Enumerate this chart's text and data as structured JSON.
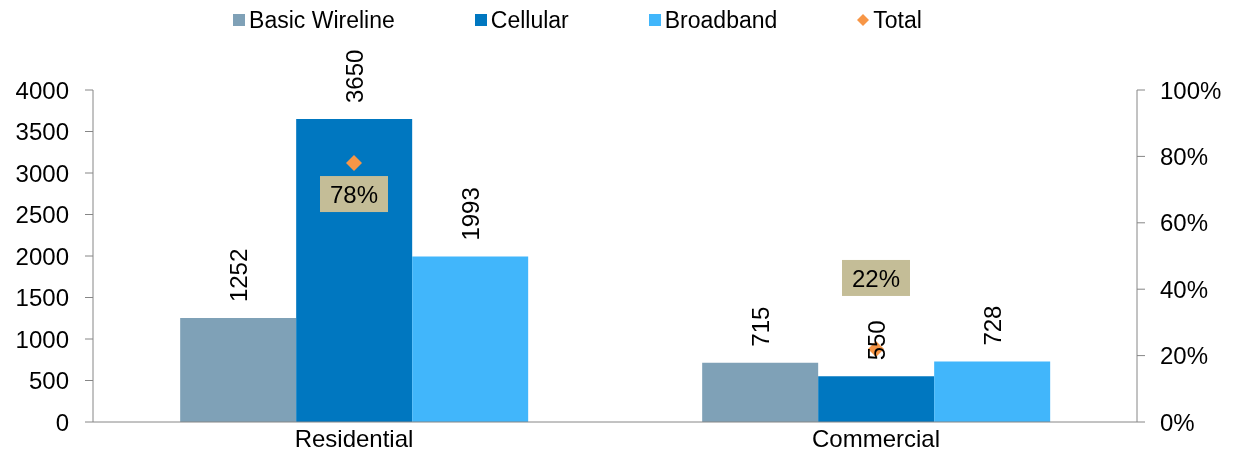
{
  "chart_data": {
    "type": "bar",
    "categories": [
      "Residential",
      "Commercial"
    ],
    "series": [
      {
        "name": "Basic Wireline",
        "color": "#7fa1b7",
        "values": [
          1252,
          715
        ]
      },
      {
        "name": "Cellular",
        "color": "#0077c0",
        "values": [
          3650,
          550
        ]
      },
      {
        "name": "Broadband",
        "color": "#41b6fb",
        "values": [
          1993,
          728
        ]
      },
      {
        "name": "Total",
        "type": "scatter",
        "color": "#f79646",
        "axis": "y2",
        "marker": "diamond",
        "x": [
          "Residential",
          "Commercial"
        ],
        "values": [
          78,
          22
        ],
        "value_labels": [
          "78%",
          "22%"
        ]
      }
    ],
    "ylim": [
      0,
      4000
    ],
    "yticks": [
      0,
      500,
      1000,
      1500,
      2000,
      2500,
      3000,
      3500,
      4000
    ],
    "y2lim": [
      0,
      100
    ],
    "y2ticks": [
      {
        "value": 0,
        "label": "0%"
      },
      {
        "value": 20,
        "label": "20%"
      },
      {
        "value": 40,
        "label": "40%"
      },
      {
        "value": 60,
        "label": "60%"
      },
      {
        "value": 80,
        "label": "80%"
      },
      {
        "value": 100,
        "label": "100%"
      }
    ],
    "data_labels": true,
    "legend": "top"
  }
}
